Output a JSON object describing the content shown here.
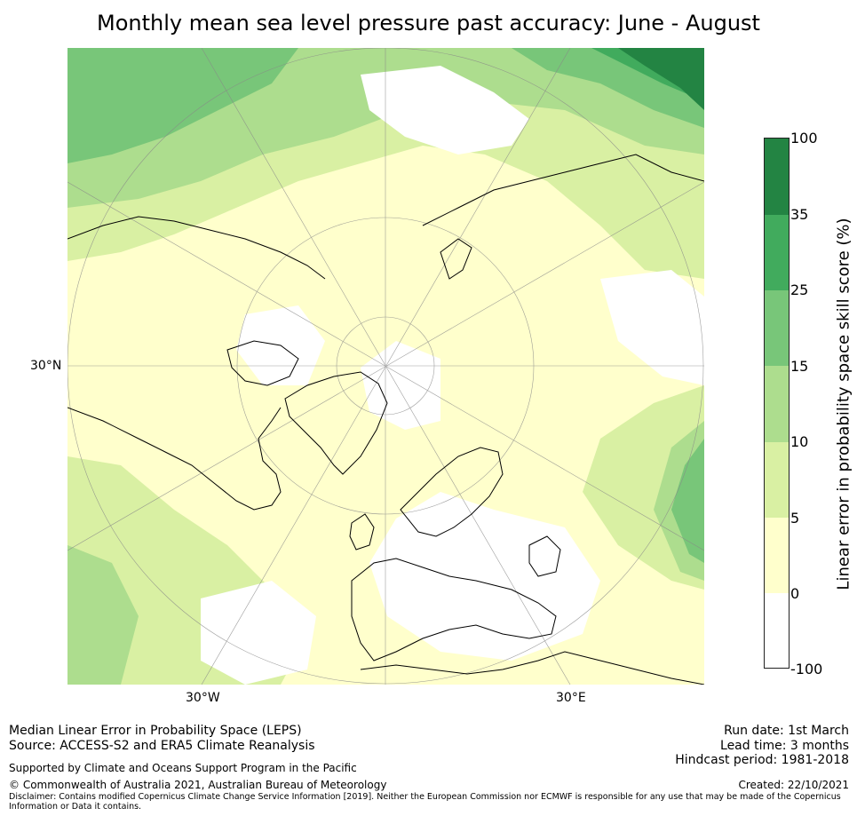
{
  "title": "Monthly mean sea level pressure past accuracy: June - August",
  "map": {
    "projection": "north polar stereographic",
    "lat_label": "30°N",
    "lon_labels": {
      "west": "30°W",
      "east": "30°E"
    },
    "coastline_color": "#000000",
    "grid_color": "#888888"
  },
  "colorbar": {
    "title": "Linear error in probability space skill score (%)",
    "ticks": [
      "-100",
      "0",
      "5",
      "10",
      "15",
      "25",
      "35",
      "100"
    ],
    "bins": [
      {
        "range": [
          -100,
          0
        ],
        "color": "#ffffff"
      },
      {
        "range": [
          0,
          5
        ],
        "color": "#ffffcc"
      },
      {
        "range": [
          5,
          10
        ],
        "color": "#d9f0a3"
      },
      {
        "range": [
          10,
          15
        ],
        "color": "#addd8e"
      },
      {
        "range": [
          15,
          25
        ],
        "color": "#78c679"
      },
      {
        "range": [
          25,
          35
        ],
        "color": "#41ab5d"
      },
      {
        "range": [
          35,
          100
        ],
        "color": "#238443"
      }
    ]
  },
  "footer": {
    "description": "Median Linear Error in Probability Space (LEPS)",
    "source": "Source: ACCESS-S2 and ERA5 Climate Reanalysis",
    "support": "Supported by Climate and Oceans Support Program in the Pacific",
    "copyright": "© Commonwealth of Australia 2021, Australian Bureau of Meteorology",
    "disclaimer": "Disclaimer: Contains modified Copernicus Climate Change Service Information [2019]. Neither the European Commission nor ECMWF is responsible for any use that may be made of the Copernicus Information or Data it contains.",
    "run_date": "Run date: 1st March",
    "lead_time": "Lead time: 3 months",
    "hindcast_period": "Hindcast period: 1981-2018",
    "created": "Created: 22/10/2021"
  }
}
